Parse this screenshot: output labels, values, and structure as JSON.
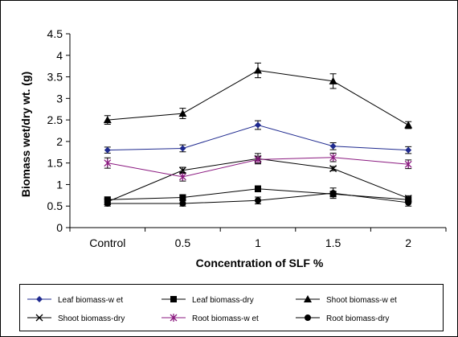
{
  "chart_data": {
    "type": "line",
    "title": "",
    "xlabel": "Concentration of SLF %",
    "ylabel": "Biomass wet/dry wt. (g)",
    "categories": [
      "Control",
      "0.5",
      "1",
      "1.5",
      "2"
    ],
    "ylim": [
      0,
      4.5
    ],
    "yticks": [
      "0",
      "0.5",
      "1",
      "1.5",
      "2",
      "2.5",
      "3",
      "3.5",
      "4",
      "4.5"
    ],
    "grid": false,
    "legend_position": "bottom",
    "series": [
      {
        "name": "Leaf biomass-w et",
        "values": [
          1.8,
          1.84,
          2.38,
          1.89,
          1.8
        ],
        "errors": [
          0.07,
          0.08,
          0.1,
          0.08,
          0.08
        ],
        "color": "#1f2a8f",
        "marker": "diamond"
      },
      {
        "name": "Leaf biomass-dry",
        "values": [
          0.65,
          0.7,
          0.9,
          0.78,
          0.65
        ],
        "errors": [
          0.06,
          0.06,
          0.07,
          0.06,
          0.06
        ],
        "color": "#000000",
        "marker": "square"
      },
      {
        "name": "Shoot biomass-w et",
        "values": [
          2.5,
          2.65,
          3.65,
          3.4,
          2.38
        ],
        "errors": [
          0.1,
          0.12,
          0.17,
          0.17,
          0.08
        ],
        "color": "#000000",
        "marker": "triangle"
      },
      {
        "name": "Shoot biomass-dry",
        "values": [
          0.6,
          1.33,
          1.6,
          1.37,
          0.68
        ],
        "errors": [
          0.06,
          0.07,
          0.12,
          0.05,
          0.06
        ],
        "color": "#000000",
        "marker": "x"
      },
      {
        "name": "Root biomass-w et",
        "values": [
          1.5,
          1.18,
          1.58,
          1.63,
          1.47
        ],
        "errors": [
          0.12,
          0.1,
          0.08,
          0.1,
          0.1
        ],
        "color": "#8b1a80",
        "marker": "cross"
      },
      {
        "name": "Root biomass-dry",
        "values": [
          0.56,
          0.56,
          0.63,
          0.8,
          0.58
        ],
        "errors": [
          0.06,
          0.06,
          0.08,
          0.12,
          0.08
        ],
        "color": "#000000",
        "marker": "circle"
      }
    ]
  }
}
